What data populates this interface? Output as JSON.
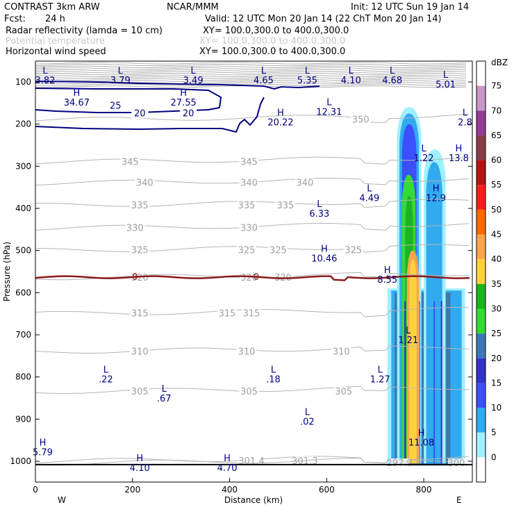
{
  "header": {
    "model": "CONTRAST  3km ARW",
    "org": "NCAR/MMM",
    "init": "Init: 12 UTC Sun 19 Jan 14",
    "fcst_label": "Fcst:",
    "fcst_value": "24 h",
    "valid": "Valid: 12 UTC Mon 20 Jan 14 (22 ChT Mon 20 Jan 14)"
  },
  "fields": [
    {
      "name": "Radar reflectivity (lamda = 10 cm)",
      "xy": "XY= 100.0,300.0 to 400.0,300.0",
      "color": "#000000"
    },
    {
      "name": "Potential temperature",
      "xy": "XY= 100.0,300.0 to 400.0,300.0",
      "color": "#c8c8c8"
    },
    {
      "name": "Horizontal wind speed",
      "xy": "XY= 100.0,300.0 to 400.0,300.0",
      "color": "#000000"
    }
  ],
  "axes": {
    "ylabel": "Pressure (hPa)",
    "xlabel": "Distance (km)",
    "west": "W",
    "east": "E"
  },
  "colorbar": {
    "unit": "dBZ",
    "ticks": [
      "75",
      "70",
      "65",
      "60",
      "55",
      "50",
      "45",
      "40",
      "35",
      "30",
      "25",
      "20",
      "15",
      "10",
      "5",
      "0"
    ],
    "colors": [
      "#ffffff",
      "#c896c8",
      "#963c96",
      "#8c3c46",
      "#b41414",
      "#ff1a1a",
      "#ff6a00",
      "#ffa550",
      "#ffd23c",
      "#1eb41e",
      "#32dc32",
      "#3c78b4",
      "#3232c8",
      "#3c50ff",
      "#32aaf0",
      "#a0f0ff",
      "#ffffff"
    ]
  },
  "chart_data": {
    "type": "heatmap",
    "xlim": [
      0,
      900
    ],
    "ylim_hpa": [
      1050,
      75
    ],
    "x_ticks": [
      0,
      200,
      400,
      600,
      800
    ],
    "y_ticks": [
      100,
      200,
      300,
      400,
      500,
      600,
      700,
      800,
      900,
      1000
    ],
    "theta_contours": [
      {
        "value": "350",
        "p": 190,
        "label_x": 670
      },
      {
        "value": "345",
        "p": 290,
        "label_x": 195
      },
      {
        "value": "345",
        "p": 290,
        "label_x": 440
      },
      {
        "value": "340",
        "p": 340,
        "label_x": 225
      },
      {
        "value": "340",
        "p": 340,
        "label_x": 440
      },
      {
        "value": "340",
        "p": 340,
        "label_x": 555
      },
      {
        "value": "335",
        "p": 393,
        "label_x": 215
      },
      {
        "value": "335",
        "p": 393,
        "label_x": 435
      },
      {
        "value": "335",
        "p": 393,
        "label_x": 515
      },
      {
        "value": "330",
        "p": 447,
        "label_x": 205
      },
      {
        "value": "330",
        "p": 447,
        "label_x": 440
      },
      {
        "value": "325",
        "p": 500,
        "label_x": 215
      },
      {
        "value": "325",
        "p": 500,
        "label_x": 435
      },
      {
        "value": "325",
        "p": 500,
        "label_x": 500
      },
      {
        "value": "325",
        "p": 500,
        "label_x": 655
      },
      {
        "value": "320",
        "p": 565,
        "label_x": 215
      },
      {
        "value": "320",
        "p": 565,
        "label_x": 440
      },
      {
        "value": "320",
        "p": 565,
        "label_x": 510
      },
      {
        "value": "315",
        "p": 650,
        "label_x": 215
      },
      {
        "value": "315",
        "p": 650,
        "label_x": 395
      },
      {
        "value": "315",
        "p": 650,
        "label_x": 445
      },
      {
        "value": "310",
        "p": 740,
        "label_x": 215
      },
      {
        "value": "310",
        "p": 740,
        "label_x": 435
      },
      {
        "value": "310",
        "p": 740,
        "label_x": 630
      },
      {
        "value": "305",
        "p": 835,
        "label_x": 215
      },
      {
        "value": "305",
        "p": 835,
        "label_x": 440
      },
      {
        "value": "305",
        "p": 835,
        "label_x": 635
      },
      {
        "value": "301.4",
        "p": 1000,
        "label_x": 445
      },
      {
        "value": "301.3",
        "p": 1000,
        "label_x": 555
      },
      {
        "value": "297.9",
        "p": 1005,
        "label_x": 750
      },
      {
        "value": "300.",
        "p": 1005,
        "label_x": 870
      }
    ],
    "wind_contours": [
      {
        "value": "25",
        "label_x": 165,
        "label_p": 157
      },
      {
        "value": "20",
        "label_x": 215,
        "label_p": 175
      },
      {
        "value": "20",
        "label_x": 315,
        "label_p": 175
      }
    ],
    "freezing_level": {
      "value": "0",
      "p": 565,
      "label_x": [
        205,
        455
      ]
    },
    "extrema": [
      {
        "kind": "L",
        "value": "3.82",
        "x": 20,
        "p": 80
      },
      {
        "kind": "L",
        "value": "3.79",
        "x": 175,
        "p": 80
      },
      {
        "kind": "L",
        "value": "3.49",
        "x": 325,
        "p": 80
      },
      {
        "kind": "L",
        "value": "4.65",
        "x": 470,
        "p": 80
      },
      {
        "kind": "L",
        "value": "5.35",
        "x": 560,
        "p": 80
      },
      {
        "kind": "L",
        "value": "4.10",
        "x": 650,
        "p": 80
      },
      {
        "kind": "L",
        "value": "4.68",
        "x": 735,
        "p": 80
      },
      {
        "kind": "L",
        "value": "5.01",
        "x": 845,
        "p": 90
      },
      {
        "kind": "H",
        "value": "34.67",
        "x": 85,
        "p": 133
      },
      {
        "kind": "H",
        "value": "27.55",
        "x": 305,
        "p": 133
      },
      {
        "kind": "L",
        "value": "12.31",
        "x": 605,
        "p": 155
      },
      {
        "kind": "H",
        "value": "20.22",
        "x": 505,
        "p": 180
      },
      {
        "kind": "L",
        "value": "2.8",
        "x": 885,
        "p": 180
      },
      {
        "kind": "L",
        "value": "1.22",
        "x": 800,
        "p": 265
      },
      {
        "kind": "H",
        "value": "13.8",
        "x": 872,
        "p": 265
      },
      {
        "kind": "L",
        "value": "4.49",
        "x": 688,
        "p": 360
      },
      {
        "kind": "H",
        "value": "12.9",
        "x": 825,
        "p": 360
      },
      {
        "kind": "L",
        "value": "6.33",
        "x": 585,
        "p": 397
      },
      {
        "kind": "H",
        "value": "10.46",
        "x": 595,
        "p": 503
      },
      {
        "kind": "H",
        "value": "8.55",
        "x": 725,
        "p": 553
      },
      {
        "kind": "L",
        "value": "1.21",
        "x": 768,
        "p": 697
      },
      {
        "kind": "L",
        "value": "1.27",
        "x": 710,
        "p": 790
      },
      {
        "kind": "L",
        "value": ".22",
        "x": 145,
        "p": 790
      },
      {
        "kind": "L",
        "value": ".18",
        "x": 490,
        "p": 790
      },
      {
        "kind": "L",
        "value": ".67",
        "x": 265,
        "p": 835
      },
      {
        "kind": "L",
        "value": ".02",
        "x": 560,
        "p": 890
      },
      {
        "kind": "H",
        "value": "5.79",
        "x": 15,
        "p": 963
      },
      {
        "kind": "H",
        "value": "11.08",
        "x": 795,
        "p": 940
      },
      {
        "kind": "H",
        "value": "4.10",
        "x": 215,
        "p": 1000
      },
      {
        "kind": "H",
        "value": "4.70",
        "x": 395,
        "p": 1000
      }
    ],
    "reflectivity_cores": [
      {
        "x_range": [
          730,
          760
        ],
        "p_range": [
          590,
          1010
        ],
        "dbz": 10
      },
      {
        "x_range": [
          745,
          800
        ],
        "p_range": [
          550,
          1010
        ],
        "dbz": 20
      },
      {
        "x_range": [
          800,
          860
        ],
        "p_range": [
          560,
          1010
        ],
        "dbz": 20
      },
      {
        "x_range": [
          755,
          790
        ],
        "p_range": [
          580,
          1010
        ],
        "dbz": 30
      },
      {
        "x_range": [
          760,
          785
        ],
        "p_range": [
          500,
          1010
        ],
        "dbz": 40
      }
    ]
  }
}
